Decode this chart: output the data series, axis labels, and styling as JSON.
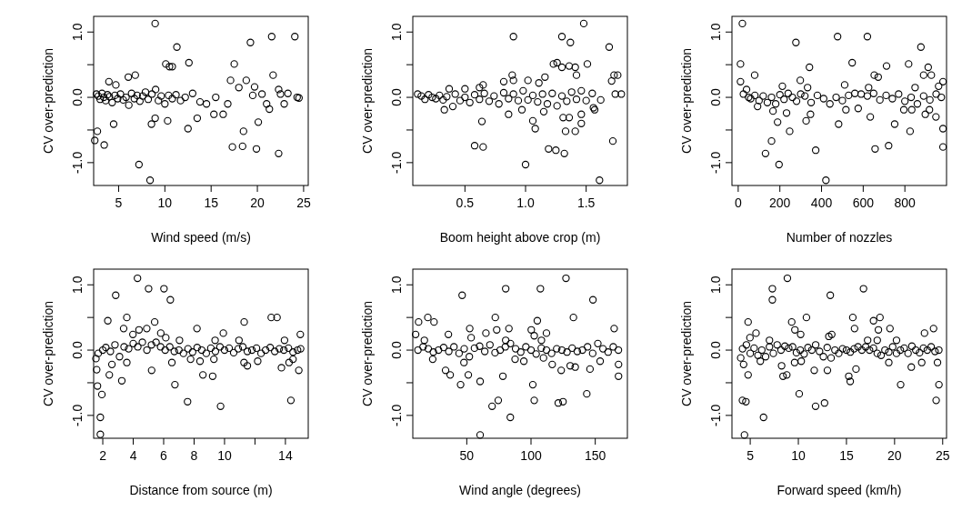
{
  "chart_data": [
    {
      "type": "scatter",
      "xlabel": "Wind speed (m/s)",
      "ylabel": "CV over-prediction",
      "xlim": [
        2.3,
        25.5
      ],
      "xticks": [
        5,
        10,
        15,
        20,
        25
      ],
      "ylim": [
        -1.35,
        1.24
      ],
      "yticks": [
        {
          "value": -1,
          "label": "-1.0"
        },
        {
          "value": -0.5,
          "label": null
        },
        {
          "value": 0,
          "label": "0.0"
        },
        {
          "value": 0.5,
          "label": null
        },
        {
          "value": 1,
          "label": "1.0"
        }
      ],
      "marker": "circle",
      "series": [
        {
          "color": "#000000",
          "x": [
            8.95,
            21.55,
            24.05,
            19.25,
            11.3,
            12.6,
            17.5,
            10.1,
            10.5,
            10.8,
            21.7,
            6.8,
            6.05,
            3.95,
            4.7,
            17.1,
            18.8,
            19.7,
            18.0,
            22.3,
            4.46,
            8.55,
            8.95,
            10.3,
            12.5,
            13.5,
            15.3,
            16.3,
            18.5,
            20.1,
            17.3,
            18.4,
            19.9,
            22.3,
            7.2,
            8.4,
            2.42,
            3.44,
            2.7,
            2.6,
            2.8,
            3.0,
            3.2,
            3.4,
            3.6,
            3.8,
            4.0,
            4.3,
            4.6,
            4.9,
            5.2,
            5.5,
            5.8,
            6.1,
            6.4,
            6.7,
            7.0,
            7.3,
            7.6,
            7.9,
            8.2,
            8.6,
            9.0,
            9.3,
            9.6,
            10.0,
            10.4,
            10.8,
            11.2,
            11.7,
            12.2,
            13.0,
            13.8,
            14.5,
            15.5,
            16.8,
            19.5,
            20.5,
            21.0,
            21.3,
            22.5,
            22.9,
            23.3,
            24.3,
            24.5
          ],
          "values": [
            1.13,
            0.93,
            0.93,
            0.84,
            0.77,
            0.53,
            0.51,
            0.51,
            0.47,
            0.47,
            0.34,
            0.34,
            0.31,
            0.24,
            0.19,
            0.26,
            0.26,
            0.16,
            0.15,
            0.12,
            -0.41,
            -0.41,
            -0.32,
            -0.36,
            -0.48,
            -0.32,
            -0.26,
            -0.26,
            -0.52,
            -0.38,
            -0.76,
            -0.75,
            -0.79,
            -0.86,
            -1.03,
            -1.27,
            -0.66,
            -0.73,
            -0.52,
            0.05,
            0.02,
            -0.03,
            0.06,
            0.0,
            -0.05,
            0.04,
            0.01,
            -0.08,
            0.03,
            -0.02,
            0.05,
            -0.04,
            0.0,
            -0.12,
            0.06,
            -0.02,
            0.03,
            -0.06,
            0.02,
            0.08,
            -0.03,
            0.05,
            0.12,
            -0.05,
            0.02,
            -0.1,
            0.03,
            -0.02,
            0.04,
            -0.05,
            0.0,
            0.06,
            -0.07,
            -0.1,
            0.0,
            -0.1,
            0.03,
            0.05,
            -0.1,
            -0.18,
            0.05,
            -0.1,
            0.06,
            0.0,
            -0.01
          ]
        }
      ]
    },
    {
      "type": "scatter",
      "xlabel": "Boom height above crop (m)",
      "ylabel": "CV over-prediction",
      "xlim": [
        0.07,
        1.84
      ],
      "xticks": [
        0.5,
        {
          "value": 1,
          "label": "1.0"
        },
        1.5
      ],
      "ylim": [
        -1.35,
        1.24
      ],
      "yticks": [
        {
          "value": -1,
          "label": "-1.0"
        },
        {
          "value": -0.5,
          "label": null
        },
        {
          "value": 0,
          "label": "0.0"
        },
        {
          "value": 0.5,
          "label": null
        },
        {
          "value": 1,
          "label": "1.0"
        }
      ],
      "marker": "circle",
      "series": [
        {
          "color": "#000000",
          "x": [
            1.48,
            0.9,
            1.3,
            1.37,
            1.69,
            1.23,
            1.26,
            1.3,
            1.36,
            1.41,
            1.51,
            1.42,
            1.16,
            1.73,
            1.76,
            1.71,
            0.89,
            0.9,
            0.82,
            1.02,
            1.11,
            0.65,
            0.62,
            0.5,
            0.37,
            1.74,
            1.79,
            1.62,
            0.33,
            0.4,
            0.86,
            0.97,
            1.15,
            0.64,
            1.06,
            1.08,
            1.31,
            1.36,
            1.46,
            1.46,
            1.56,
            1.57,
            1.33,
            1.41,
            1.72,
            0.58,
            0.65,
            1.19,
            1.25,
            1.32,
            1.0,
            1.61,
            0.11,
            0.14,
            0.17,
            0.2,
            0.23,
            0.26,
            0.29,
            0.32,
            0.35,
            0.42,
            0.46,
            0.5,
            0.54,
            0.58,
            0.62,
            0.66,
            0.7,
            0.74,
            0.78,
            0.82,
            0.86,
            0.9,
            0.94,
            0.98,
            1.02,
            1.06,
            1.1,
            1.14,
            1.18,
            1.22,
            1.26,
            1.3,
            1.34,
            1.38,
            1.42,
            1.46,
            1.5,
            1.55
          ],
          "values": [
            1.13,
            0.93,
            0.93,
            0.84,
            0.77,
            0.51,
            0.53,
            0.46,
            0.48,
            0.46,
            0.51,
            0.34,
            0.31,
            0.34,
            0.34,
            0.25,
            0.34,
            0.26,
            0.24,
            0.26,
            0.22,
            0.19,
            0.15,
            0.13,
            0.13,
            0.05,
            0.05,
            -0.04,
            -0.19,
            -0.14,
            -0.26,
            -0.19,
            -0.22,
            -0.37,
            -0.36,
            -0.48,
            -0.31,
            -0.31,
            -0.26,
            -0.4,
            -0.16,
            -0.19,
            -0.52,
            -0.52,
            -0.67,
            -0.74,
            -0.76,
            -0.79,
            -0.81,
            -0.86,
            -1.03,
            -1.27,
            0.05,
            0.02,
            -0.03,
            0.04,
            0.0,
            -0.02,
            0.03,
            -0.04,
            0.01,
            0.05,
            -0.05,
            0.0,
            -0.08,
            0.04,
            -0.03,
            0.06,
            -0.06,
            0.02,
            -0.1,
            0.07,
            -0.02,
            0.05,
            -0.05,
            0.1,
            -0.04,
            0.03,
            -0.07,
            0.05,
            -0.1,
            0.06,
            -0.13,
            0.02,
            -0.06,
            0.08,
            -0.03,
            0.1,
            -0.05,
            0.06
          ]
        }
      ]
    },
    {
      "type": "scatter",
      "xlabel": "Number of nozzles",
      "ylabel": "CV over-prediction",
      "xlim": [
        -30,
        1000
      ],
      "xticks": [
        0,
        200,
        400,
        600,
        800
      ],
      "ylim": [
        -1.35,
        1.24
      ],
      "yticks": [
        {
          "value": -1,
          "label": "-1.0"
        },
        {
          "value": -0.5,
          "label": null
        },
        {
          "value": 0,
          "label": "0.0"
        },
        {
          "value": 0.5,
          "label": null
        },
        {
          "value": 1,
          "label": "1.0"
        }
      ],
      "marker": "circle",
      "series": [
        {
          "color": "#000000",
          "x": [
            20,
            11,
            11,
            79,
            277,
            477,
            620,
            877,
            547,
            342,
            712,
            818,
            912,
            890,
            927,
            653,
            672,
            298,
            212,
            333,
            626,
            511,
            849,
            962,
            983,
            93,
            167,
            232,
            189,
            247,
            326,
            347,
            482,
            517,
            576,
            634,
            751,
            795,
            833,
            825,
            898,
            918,
            949,
            131,
            160,
            196,
            372,
            421,
            657,
            722,
            983,
            983,
            25,
            40,
            50,
            60,
            80,
            100,
            120,
            140,
            160,
            180,
            200,
            220,
            240,
            260,
            280,
            300,
            320,
            350,
            380,
            410,
            440,
            470,
            500,
            530,
            560,
            590,
            620,
            650,
            680,
            710,
            740,
            770,
            800,
            830,
            860,
            890,
            920,
            950,
            975
          ],
          "values": [
            1.13,
            0.51,
            0.24,
            0.34,
            0.84,
            0.93,
            0.93,
            0.77,
            0.53,
            0.46,
            0.48,
            0.51,
            0.46,
            0.34,
            0.34,
            0.34,
            0.31,
            0.26,
            0.17,
            0.15,
            0.15,
            0.19,
            0.15,
            0.17,
            0.24,
            -0.14,
            -0.21,
            -0.24,
            -0.38,
            -0.52,
            -0.36,
            -0.26,
            -0.41,
            -0.19,
            -0.17,
            -0.3,
            -0.41,
            -0.19,
            -0.19,
            -0.52,
            -0.26,
            -0.19,
            -0.3,
            -0.86,
            -0.67,
            -1.03,
            -0.81,
            -1.27,
            -0.79,
            -0.74,
            -0.48,
            -0.76,
            0.05,
            0.12,
            0.0,
            -0.02,
            0.03,
            -0.05,
            0.02,
            -0.08,
            0.0,
            -0.1,
            0.04,
            -0.03,
            0.06,
            0.0,
            -0.06,
            0.05,
            0.02,
            -0.08,
            0.03,
            -0.02,
            -0.1,
            0.0,
            -0.05,
            0.03,
            0.06,
            0.05,
            0.02,
            0.06,
            -0.04,
            0.03,
            -0.02,
            0.05,
            -0.06,
            0.0,
            -0.1,
            0.02,
            -0.04,
            0.05,
            0.0
          ]
        }
      ]
    },
    {
      "type": "scatter",
      "xlabel": "Distance from source (m)",
      "ylabel": "CV over-prediction",
      "xlim": [
        1.4,
        15.5
      ],
      "xticks": [
        2,
        4,
        6,
        8,
        10,
        {
          "value": 12,
          "label": null
        },
        14
      ],
      "ylim": [
        -1.35,
        1.24
      ],
      "yticks": [
        {
          "value": -1,
          "label": "-1.0"
        },
        {
          "value": -0.5,
          "label": null
        },
        {
          "value": 0,
          "label": "0.0"
        },
        {
          "value": 0.5,
          "label": null
        },
        {
          "value": 1,
          "label": "1.0"
        }
      ],
      "marker": "circle",
      "series": [
        {
          "color": "#000000",
          "x": [
            4.28,
            5.01,
            6.02,
            6.44,
            2.85,
            2.33,
            3.58,
            3.37,
            4.38,
            4.89,
            5.41,
            3.98,
            5.81,
            6.14,
            8.19,
            9.92,
            11.29,
            13.07,
            13.45,
            14.98,
            13.94,
            7.04,
            9.38,
            10.95,
            1.84,
            1.84,
            1.94,
            2.43,
            3.25,
            2.6,
            3.58,
            5.21,
            6.54,
            6.74,
            7.57,
            7.77,
            8.39,
            8.58,
            9.22,
            9.74,
            9.3,
            11.5,
            11.28,
            12.18,
            13.74,
            14.24,
            14.36,
            14.5,
            14.88,
            1.55,
            1.6,
            1.7,
            1.65,
            2.0,
            2.2,
            2.5,
            2.8,
            3.1,
            3.4,
            3.7,
            4.0,
            4.3,
            4.6,
            4.9,
            5.2,
            5.5,
            5.8,
            6.1,
            6.4,
            6.7,
            7.0,
            7.3,
            7.6,
            7.9,
            8.2,
            8.5,
            8.8,
            9.1,
            9.4,
            9.7,
            10.0,
            10.3,
            10.6,
            10.9,
            11.2,
            11.5,
            11.8,
            12.1,
            12.4,
            12.7,
            13.0,
            13.3,
            13.6,
            13.9,
            14.2,
            14.5,
            14.8,
            15.0
          ],
          "values": [
            1.1,
            0.94,
            0.94,
            0.77,
            0.84,
            0.45,
            0.5,
            0.33,
            0.31,
            0.33,
            0.43,
            0.24,
            0.26,
            0.19,
            0.33,
            0.26,
            0.43,
            0.5,
            0.5,
            0.24,
            0.15,
            0.15,
            0.15,
            0.15,
            -1.29,
            -1.03,
            -0.68,
            -0.38,
            -0.47,
            -0.22,
            -0.19,
            -0.31,
            -0.19,
            -0.53,
            -0.79,
            -0.14,
            -0.17,
            -0.38,
            -0.4,
            -0.86,
            -0.14,
            -0.24,
            -0.19,
            -0.17,
            -0.27,
            -0.19,
            -0.77,
            -0.14,
            -0.31,
            -0.13,
            -0.3,
            -0.05,
            -0.55,
            0.0,
            0.04,
            -0.02,
            0.08,
            -0.1,
            0.05,
            0.02,
            0.1,
            0.05,
            0.12,
            0.0,
            0.08,
            0.12,
            0.05,
            0.0,
            0.05,
            -0.02,
            0.0,
            -0.05,
            0.02,
            -0.03,
            0.04,
            0.0,
            -0.05,
            0.03,
            -0.02,
            0.05,
            0.0,
            0.03,
            -0.04,
            0.02,
            0.05,
            -0.02,
            0.0,
            0.03,
            -0.05,
            0.0,
            0.04,
            -0.02,
            0.02,
            0.0,
            0.03,
            -0.03,
            0.0,
            0.02
          ]
        }
      ]
    },
    {
      "type": "scatter",
      "xlabel": "Wind angle (degrees)",
      "ylabel": "CV over-prediction",
      "xlim": [
        8,
        175
      ],
      "xticks": [
        50,
        100,
        150
      ],
      "ylim": [
        -1.35,
        1.24
      ],
      "yticks": [
        {
          "value": -1,
          "label": "-1.0"
        },
        {
          "value": -0.5,
          "label": null
        },
        {
          "value": 0,
          "label": "0.0"
        },
        {
          "value": 0.5,
          "label": null
        },
        {
          "value": 1,
          "label": "1.0"
        }
      ],
      "marker": "circle",
      "series": [
        {
          "color": "#000000",
          "x": [
            127.2,
            46.4,
            80.3,
            107.3,
            148.2,
            12.5,
            19.7,
            24.5,
            10.2,
            17.0,
            35.7,
            52.3,
            53.4,
            64.9,
            72.2,
            73.3,
            82.8,
            100.2,
            102.5,
            104.9,
            112.0,
            133.0,
            164.7,
            80.3,
            108.1,
            33.5,
            37.1,
            45.2,
            51.2,
            47.8,
            60.4,
            60.4,
            69.7,
            74.5,
            78.1,
            83.9,
            87.6,
            94.4,
            101.4,
            102.5,
            109.7,
            116.5,
            123.5,
            121.2,
            124.9,
            130.5,
            134.4,
            143.4,
            145.9,
            153.8,
            168.1,
            168.1,
            23.5,
            12,
            16,
            20,
            24,
            28,
            32,
            36,
            40,
            44,
            48,
            52,
            56,
            60,
            64,
            68,
            72,
            76,
            80,
            84,
            88,
            92,
            96,
            100,
            104,
            108,
            112,
            116,
            120,
            124,
            128,
            132,
            136,
            140,
            144,
            148,
            152,
            156,
            160,
            164,
            168
          ],
          "values": [
            1.1,
            0.84,
            0.94,
            0.94,
            0.77,
            0.43,
            0.5,
            0.43,
            0.24,
            0.15,
            0.24,
            0.33,
            0.19,
            0.26,
            0.5,
            0.31,
            0.33,
            0.31,
            0.22,
            0.45,
            0.26,
            0.5,
            0.33,
            0.15,
            0.15,
            -0.31,
            -0.38,
            -0.53,
            -0.38,
            -0.19,
            -0.48,
            -1.3,
            -0.86,
            -0.77,
            -0.4,
            -1.03,
            -0.14,
            -0.17,
            -0.53,
            -0.77,
            -0.12,
            -0.22,
            -0.31,
            -0.81,
            -0.79,
            -0.24,
            -0.26,
            -0.67,
            -0.29,
            -0.17,
            -0.22,
            -0.4,
            -0.14,
            0.0,
            0.05,
            0.02,
            -0.03,
            0.0,
            0.04,
            -0.02,
            0.05,
            -0.05,
            0.02,
            -0.1,
            0.03,
            0.06,
            -0.02,
            0.08,
            -0.04,
            0.0,
            0.05,
            0.1,
            0.02,
            -0.03,
            0.05,
            0.0,
            -0.06,
            0.03,
            0.0,
            -0.05,
            0.02,
            0.0,
            -0.03,
            0.03,
            -0.02,
            0.0,
            0.05,
            -0.05,
            0.1,
            0.02,
            -0.03,
            0.05,
            0.0
          ]
        }
      ]
    },
    {
      "type": "scatter",
      "xlabel": "Forward speed (km/h)",
      "ylabel": "CV over-prediction",
      "xlim": [
        3.1,
        25.4
      ],
      "xticks": [
        5,
        10,
        15,
        20,
        25
      ],
      "ylim": [
        -1.35,
        1.24
      ],
      "yticks": [
        {
          "value": -1,
          "label": "-1.0"
        },
        {
          "value": -0.5,
          "label": null
        },
        {
          "value": 0,
          "label": "0.0"
        },
        {
          "value": 0.5,
          "label": null
        },
        {
          "value": 1,
          "label": "1.0"
        }
      ],
      "marker": "circle",
      "series": [
        {
          "color": "#000000",
          "x": [
            8.86,
            7.3,
            7.3,
            13.32,
            16.77,
            4.78,
            4.97,
            5.6,
            9.31,
            9.64,
            10.24,
            10.84,
            13.17,
            13.47,
            15.66,
            15.84,
            17.81,
            18.48,
            18.32,
            19.52,
            23.11,
            24.05,
            20.2,
            17.2,
            18.2,
            7.0,
            4.01,
            4.31,
            4.78,
            4.19,
            4.55,
            4.4,
            6.38,
            8.26,
            8.41,
            8.8,
            9.61,
            10.09,
            11.65,
            11.79,
            12.72,
            13.02,
            15.24,
            15.39,
            15.99,
            19.4,
            20.63,
            21.74,
            22.82,
            24.32,
            24.46,
            24.61,
            6.05,
            10.3,
            4.2,
            4.6,
            5.0,
            5.4,
            5.8,
            6.2,
            6.6,
            7.0,
            7.4,
            7.8,
            8.2,
            8.6,
            9.0,
            9.4,
            9.8,
            10.2,
            10.6,
            11.0,
            11.4,
            11.8,
            12.2,
            12.6,
            13.0,
            13.4,
            13.8,
            14.2,
            14.6,
            15.0,
            15.4,
            15.8,
            16.2,
            16.6,
            17.0,
            17.4,
            17.8,
            18.2,
            18.6,
            19.0,
            19.4,
            19.8,
            20.2,
            20.6,
            21.0,
            21.4,
            21.8,
            22.2,
            22.6,
            23.0,
            23.4,
            23.8,
            24.2,
            24.6
          ],
          "values": [
            1.1,
            0.94,
            0.77,
            0.84,
            0.94,
            0.43,
            0.19,
            0.26,
            0.43,
            0.31,
            0.24,
            0.5,
            0.21,
            0.24,
            0.5,
            0.33,
            0.45,
            0.5,
            0.31,
            0.33,
            0.26,
            0.33,
            0.15,
            0.15,
            0.15,
            0.15,
            -0.12,
            -0.22,
            -0.38,
            -0.77,
            -0.79,
            -1.3,
            -1.03,
            -0.24,
            -0.4,
            -0.38,
            -0.19,
            -0.67,
            -0.31,
            -0.86,
            -0.81,
            -0.31,
            -0.4,
            -0.48,
            -0.29,
            -0.19,
            -0.53,
            -0.26,
            -0.19,
            -0.77,
            -0.19,
            -0.53,
            -0.17,
            -0.17,
            0.02,
            0.08,
            -0.05,
            0.03,
            -0.08,
            0.0,
            -0.1,
            0.05,
            -0.05,
            0.08,
            0.0,
            0.06,
            0.03,
            0.05,
            -0.04,
            0.0,
            -0.06,
            0.04,
            0.0,
            0.08,
            -0.02,
            -0.1,
            0.04,
            -0.12,
            0.0,
            -0.05,
            0.02,
            0.0,
            -0.03,
            0.02,
            0.05,
            0.0,
            0.05,
            0.0,
            0.03,
            -0.05,
            -0.08,
            0.0,
            -0.03,
            0.05,
            -0.05,
            0.0,
            0.03,
            -0.05,
            0.06,
            0.0,
            -0.04,
            0.03,
            0.0,
            0.05,
            -0.02,
            0.0
          ]
        }
      ]
    }
  ]
}
